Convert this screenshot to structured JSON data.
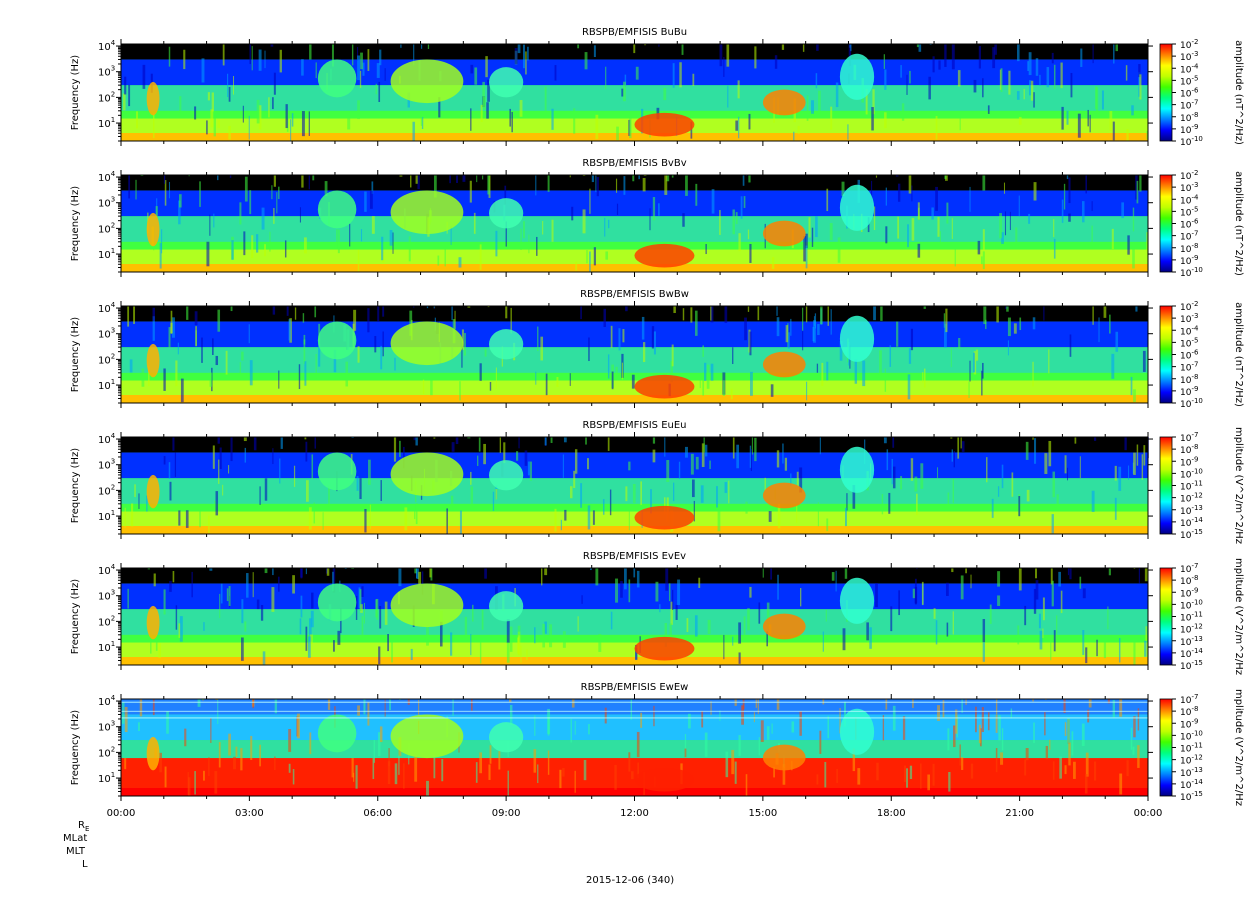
{
  "chart_data": {
    "type": "heatmap",
    "date_label": "2015-12-06 (340)",
    "x_tick_labels": [
      "00:00",
      "03:00",
      "06:00",
      "09:00",
      "12:00",
      "15:00",
      "18:00",
      "21:00",
      "00:00"
    ],
    "x_hours": [
      0,
      3,
      6,
      9,
      12,
      15,
      18,
      21,
      24
    ],
    "ylim_hz": [
      2,
      12000
    ],
    "y_scale": "log",
    "y_ticks": [
      {
        "exp": "1",
        "value": 10
      },
      {
        "exp": "2",
        "value": 100
      },
      {
        "exp": "3",
        "value": 1000
      },
      {
        "exp": "4",
        "value": 10000
      }
    ],
    "ylabel": "Frequency (Hz)",
    "colormap": [
      "#000080",
      "#0000ff",
      "#0080ff",
      "#00ffff",
      "#00ff80",
      "#40ff00",
      "#c0ff00",
      "#ffff00",
      "#ff8000",
      "#ff0000"
    ],
    "panels": [
      {
        "title": "RBSPB/EMFISIS  BuBu",
        "colorbar_label": "amplitude (nT^2/Hz)",
        "colorbar_exponents": [
          "-2",
          "-3",
          "-4",
          "-5",
          "-6",
          "-7",
          "-8",
          "-9",
          "-10"
        ]
      },
      {
        "title": "RBSPB/EMFISIS  BvBv",
        "colorbar_label": "amplitude (nT^2/Hz)",
        "colorbar_exponents": [
          "-2",
          "-3",
          "-4",
          "-5",
          "-6",
          "-7",
          "-8",
          "-9",
          "-10"
        ]
      },
      {
        "title": "RBSPB/EMFISIS  BwBw",
        "colorbar_label": "amplitude (nT^2/Hz)",
        "colorbar_exponents": [
          "-2",
          "-3",
          "-4",
          "-5",
          "-6",
          "-7",
          "-8",
          "-9",
          "-10"
        ]
      },
      {
        "title": "RBSPB/EMFISIS  EuEu",
        "colorbar_label": "mplitude (V^2/m^2/Hz",
        "colorbar_exponents": [
          "-7",
          "-8",
          "-9",
          "-10",
          "-11",
          "-12",
          "-13",
          "-14",
          "-15"
        ]
      },
      {
        "title": "RBSPB/EMFISIS  EvEv",
        "colorbar_label": "mplitude (V^2/m^2/Hz",
        "colorbar_exponents": [
          "-7",
          "-8",
          "-9",
          "-10",
          "-11",
          "-12",
          "-13",
          "-14",
          "-15"
        ]
      },
      {
        "title": "RBSPB/EMFISIS  EwEw",
        "colorbar_label": "mplitude (V^2/m^2/Hz",
        "colorbar_exponents": [
          "-7",
          "-8",
          "-9",
          "-10",
          "-11",
          "-12",
          "-13",
          "-14",
          "-15"
        ]
      }
    ],
    "ephemeris_labels": [
      "R",
      "MLat",
      "MLT",
      "L"
    ],
    "ephemeris_subscript": "E"
  }
}
